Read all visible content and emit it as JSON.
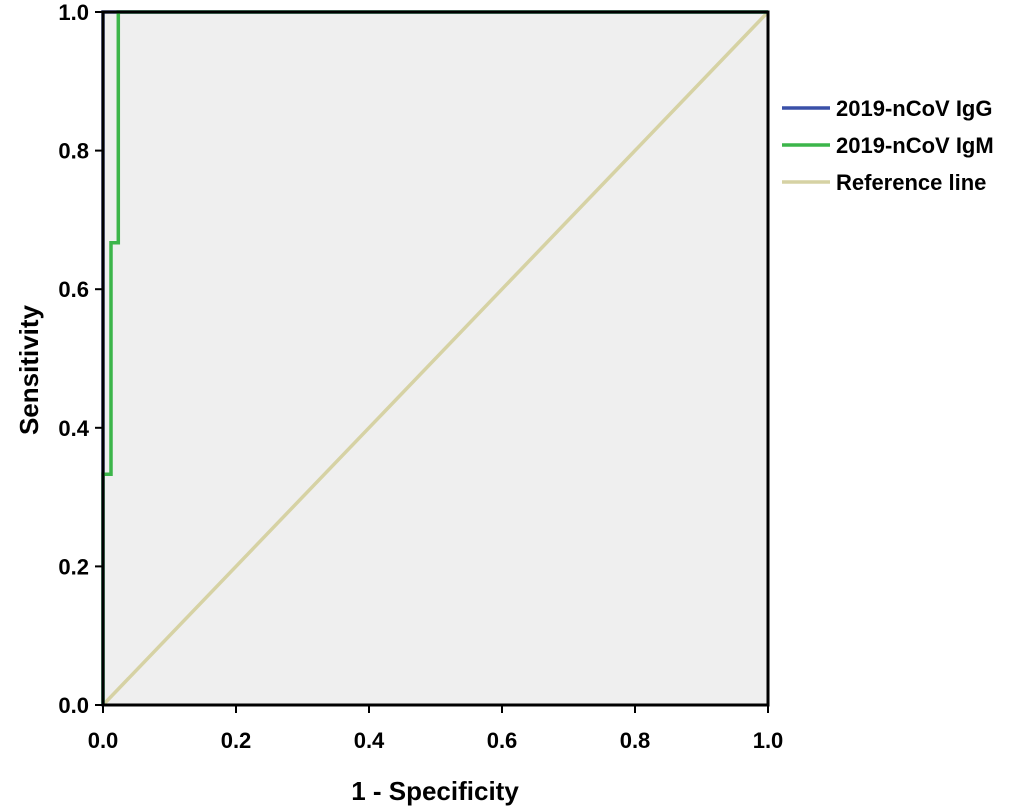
{
  "chart_data": {
    "type": "line",
    "title": "",
    "xlabel": "1 - Specificity",
    "ylabel": "Sensitivity",
    "xlim": [
      0,
      1
    ],
    "ylim": [
      0,
      1
    ],
    "xticks": [
      "0.0",
      "0.2",
      "0.4",
      "0.6",
      "0.8",
      "1.0"
    ],
    "yticks": [
      "0.0",
      "0.2",
      "0.4",
      "0.6",
      "0.8",
      "1.0"
    ],
    "grid": false,
    "background": "#efefef",
    "legend_position": "right",
    "series": [
      {
        "name": "2019-nCoV IgG",
        "color": "#3a50a8",
        "points": [
          [
            0,
            0
          ],
          [
            0,
            1
          ],
          [
            1,
            1
          ]
        ]
      },
      {
        "name": "2019-nCoV IgM",
        "color": "#3cb54a",
        "points": [
          [
            0,
            0
          ],
          [
            0,
            0.333
          ],
          [
            0.012,
            0.333
          ],
          [
            0.012,
            0.667
          ],
          [
            0.023,
            0.667
          ],
          [
            0.023,
            1
          ],
          [
            1,
            1
          ]
        ]
      },
      {
        "name": "Reference line",
        "color": "#d6d2a4",
        "points": [
          [
            0,
            0
          ],
          [
            1,
            1
          ]
        ]
      }
    ]
  }
}
